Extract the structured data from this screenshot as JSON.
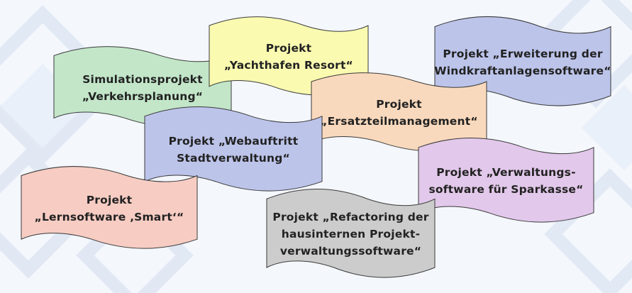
{
  "colors": {
    "background": "#f4f7fc",
    "green": "#c3e6c9",
    "yellow": "#fafab1",
    "blue": "#bcc4ea",
    "orange": "#f9d9bd",
    "purple": "#e2c8ea",
    "red": "#f6ccc3",
    "gray": "#cccccc"
  },
  "projects": [
    {
      "key": "verkehrsplanung",
      "text": "Simulationsprojekt\n„Verkehrsplanung“",
      "color": "green"
    },
    {
      "key": "yachthafen",
      "text": "Projekt\n„Yachthafen Resort“",
      "color": "yellow"
    },
    {
      "key": "windkraft",
      "text": "Projekt „Erweiterung der\nWindkraftanlagensoftware“",
      "color": "blue"
    },
    {
      "key": "ersatzteil",
      "text": "Projekt\n„Ersatzteilmanagement“",
      "color": "orange"
    },
    {
      "key": "webauftritt",
      "text": "Projekt „Webauftritt\nStadtverwaltung“",
      "color": "blue"
    },
    {
      "key": "sparkasse",
      "text": "Projekt „Verwaltungs-\nsoftware für Sparkasse“",
      "color": "purple"
    },
    {
      "key": "lernsoftware",
      "text": "Projekt\n„Lernsoftware ‚Smart‘“",
      "color": "red"
    },
    {
      "key": "refactoring",
      "text": "Projekt „Refactoring der\nhausinternen Projekt-\nverwaltungssoftware“",
      "color": "gray"
    }
  ]
}
